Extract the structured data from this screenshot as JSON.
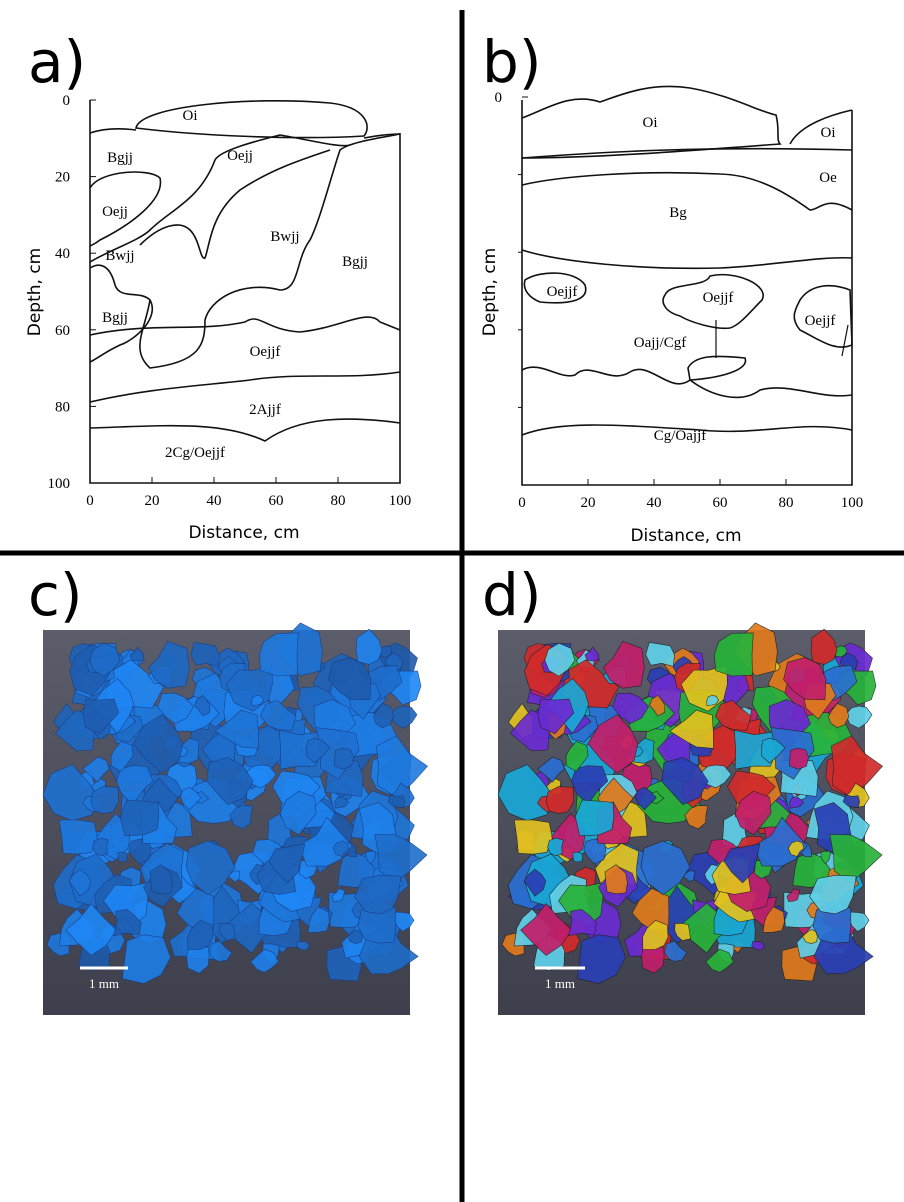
{
  "panels": [
    {
      "label": "a)",
      "y_label": "Depth, cm",
      "x_label": "Distance, cm",
      "xticks": [
        0,
        20,
        40,
        60,
        80,
        100
      ],
      "yticks": [
        0,
        20,
        40,
        60,
        80,
        100
      ],
      "regions": [
        "Oi",
        "Bgjj",
        "Oejj",
        "Oejj",
        "Bwjj",
        "Bgjj",
        "Bwjj",
        "Bgjj",
        "Oejjf",
        "2Ajjf",
        "2Cg/Oejjf"
      ]
    },
    {
      "label": "b)",
      "y_label": "Depth, cm",
      "x_label": "Distance, cm",
      "xticks": [
        0,
        20,
        40,
        60,
        80,
        100
      ],
      "yticks": [
        0
      ],
      "regions": [
        "Oi",
        "Oi",
        "Oe",
        "Bg",
        "Oejjf",
        "Oejjf",
        "Oajj/Cgf",
        "Oejjf",
        "Cg/Oajjf"
      ]
    },
    {
      "label": "c)",
      "scale_bar": "1 mm"
    },
    {
      "label": "d)",
      "scale_bar": "1 mm"
    }
  ]
}
